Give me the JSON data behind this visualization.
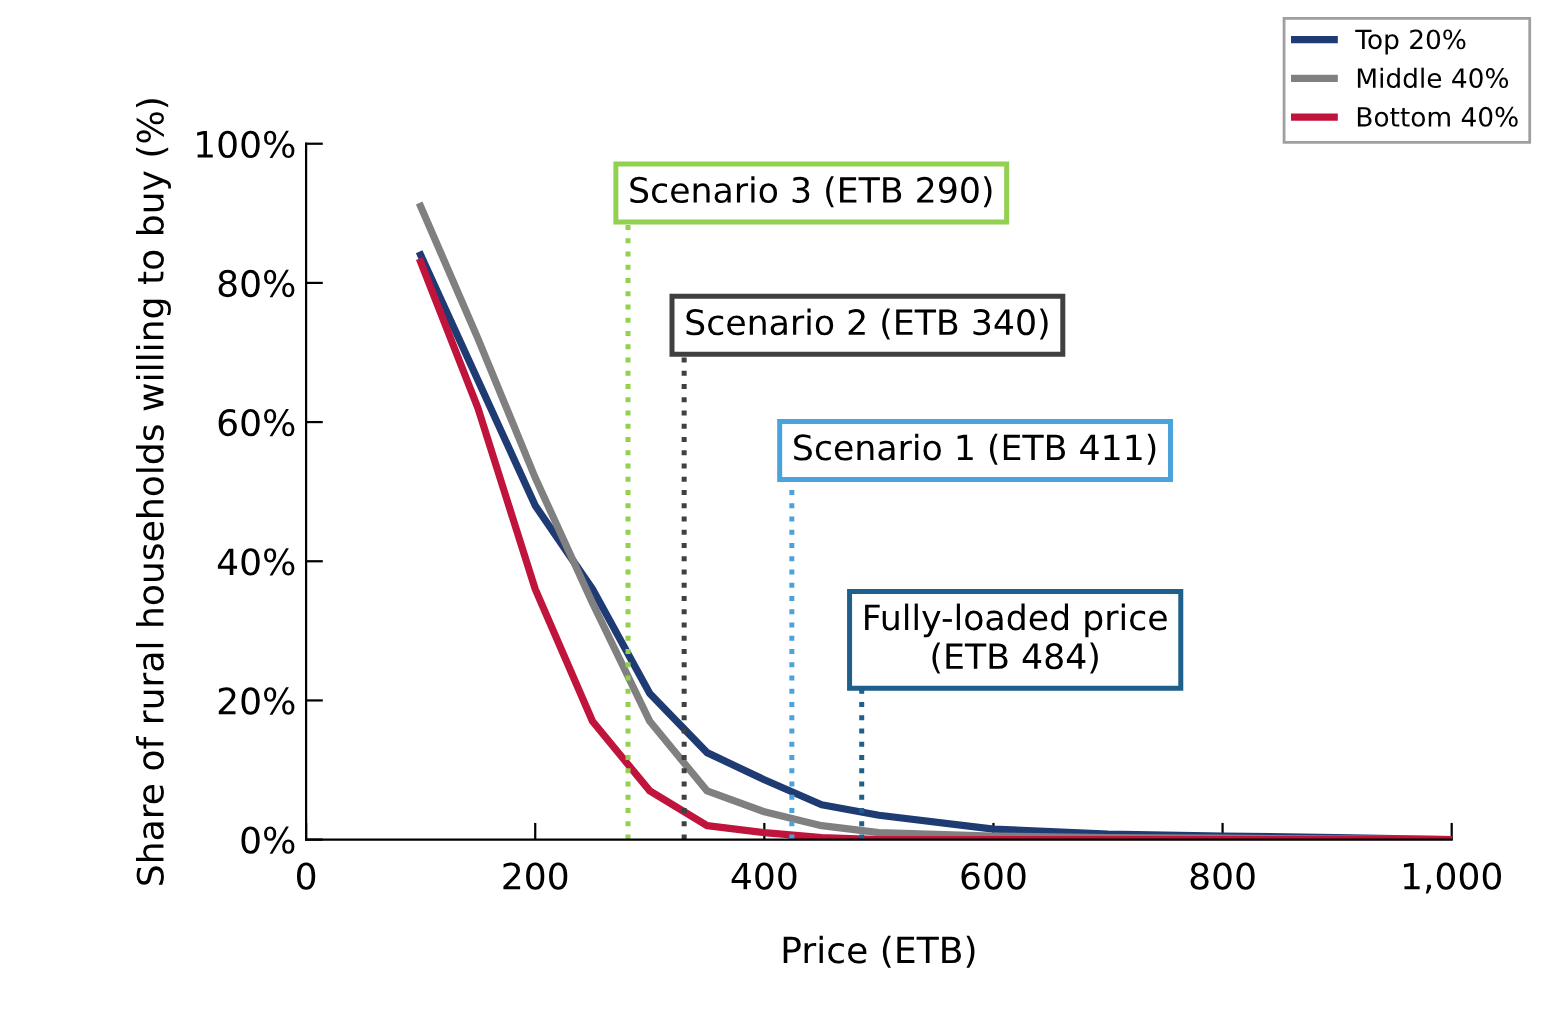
{
  "chart_data": {
    "type": "line",
    "xlabel": "Price (ETB)",
    "ylabel": "Share of rural households willing to buy (%)",
    "x": [
      100,
      150,
      200,
      250,
      300,
      350,
      400,
      450,
      500,
      600,
      700,
      800,
      900,
      1000
    ],
    "series": [
      {
        "name": "Top 20%",
        "color": "#1f3b73",
        "values": [
          84,
          66,
          48,
          36,
          21,
          12.5,
          8.6,
          5,
          3.5,
          1.5,
          0.8,
          0.5,
          0.3,
          0
        ]
      },
      {
        "name": "Middle 40%",
        "color": "#808080",
        "values": [
          91,
          72,
          52,
          34,
          17,
          7,
          4,
          2,
          1,
          0.5,
          0.3,
          0.2,
          0.1,
          0
        ]
      },
      {
        "name": "Bottom 40%",
        "color": "#c0143c",
        "values": [
          83,
          62,
          36,
          17,
          7,
          2,
          1,
          0.3,
          0,
          0,
          0,
          0,
          0,
          0
        ]
      }
    ],
    "xlim": [
      0,
      1000
    ],
    "ylim": [
      0,
      100
    ],
    "xticks": [
      0,
      200,
      400,
      600,
      800,
      {
        "value": 1000,
        "label": "1,000"
      }
    ],
    "yticks": [
      {
        "value": 0,
        "label": "0%"
      },
      {
        "value": 20,
        "label": "20%"
      },
      {
        "value": 40,
        "label": "40%"
      },
      {
        "value": 60,
        "label": "60%"
      },
      {
        "value": 80,
        "label": "80%"
      },
      {
        "value": 100,
        "label": "100%"
      }
    ],
    "ref_lines": [
      {
        "axis": "x",
        "value": 281,
        "label": "Scenario 3 (ETB 290)",
        "color": "#92d050",
        "line_style": "dotted"
      },
      {
        "axis": "x",
        "value": 330,
        "label": "Scenario 2 (ETB 340)",
        "color": "#404040",
        "line_style": "dotted"
      },
      {
        "axis": "x",
        "value": 424,
        "label": "Scenario 1 (ETB 411)",
        "color": "#4ba3dc",
        "line_style": "dotted"
      },
      {
        "axis": "x",
        "value": 485,
        "label": "Fully-loaded price\n(ETB 484)",
        "color": "#1f5f8b",
        "line_style": "dotted"
      }
    ],
    "grid": false,
    "legend": "top right",
    "marker": "none",
    "line_style": "solid"
  }
}
